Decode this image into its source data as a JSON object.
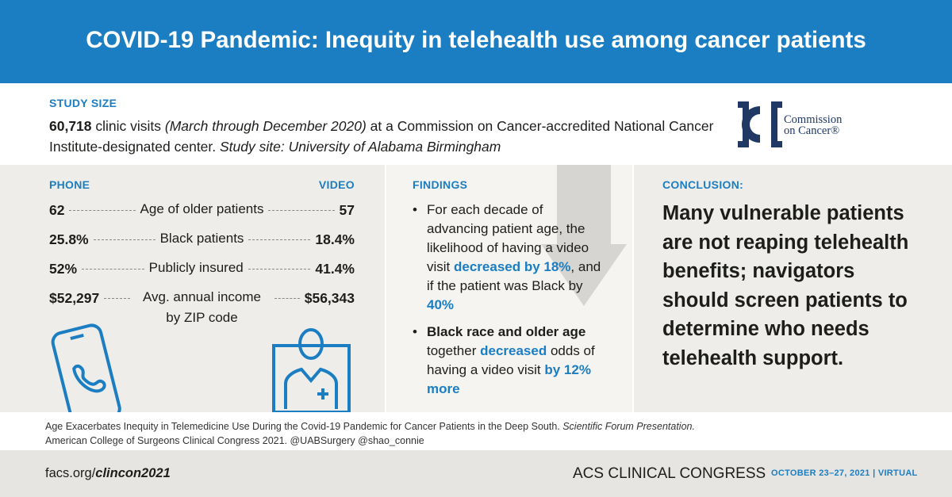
{
  "header": {
    "title": "COVID-19 Pandemic: Inequity in telehealth use among cancer patients"
  },
  "study_size": {
    "label": "STUDY SIZE",
    "segments": [
      "60,718",
      " clinic visits ",
      "(March through December 2020)",
      " at a Commission on Cancer-accredited National Cancer Institute-designated center. ",
      "Study site: University of Alabama Birmingham"
    ]
  },
  "logo": {
    "line1": "Commission",
    "line2": "on Cancer®"
  },
  "comparison": {
    "phone_label": "PHONE",
    "video_label": "VIDEO",
    "rows": [
      {
        "phone": "62",
        "label": "Age of older patients",
        "video": "57"
      },
      {
        "phone": "25.8%",
        "label": "Black patients",
        "video": "18.4%"
      },
      {
        "phone": "52%",
        "label": "Publicly insured",
        "video": "41.4%"
      },
      {
        "phone": "$52,297",
        "label": "Avg. annual income by ZIP code",
        "video": "$56,343"
      }
    ]
  },
  "findings": {
    "label": "FINDINGS",
    "bullets": [
      [
        "For each decade of advancing patient age, the likelihood of having a video visit ",
        "decreased by 18%",
        ", and if the patient was Black by ",
        "40%"
      ],
      [
        "Black race and older age",
        " together ",
        "decreased",
        " odds of having a video visit ",
        "by 12% more"
      ]
    ]
  },
  "conclusion": {
    "label": "CONCLUSION:",
    "text": "Many vulnerable patients are not reaping telehealth benefits; navigators should screen patients to determine who needs telehealth support."
  },
  "citation": {
    "segments": [
      "Age Exacerbates Inequity in Telemedicine Use During the Covid-19 Pandemic for Cancer Patients in the Deep South. ",
      "Scientific Forum Presentation.",
      "American College of Surgeons Clinical Congress 2021. @UABSurgery @shao_connie"
    ]
  },
  "footer": {
    "url_prefix": "facs.org/",
    "url_path": "clincon2021",
    "event": "ACS CLINICAL CONGRESS",
    "dates": "OCTOBER 23–27, 2021 | VIRTUAL"
  }
}
